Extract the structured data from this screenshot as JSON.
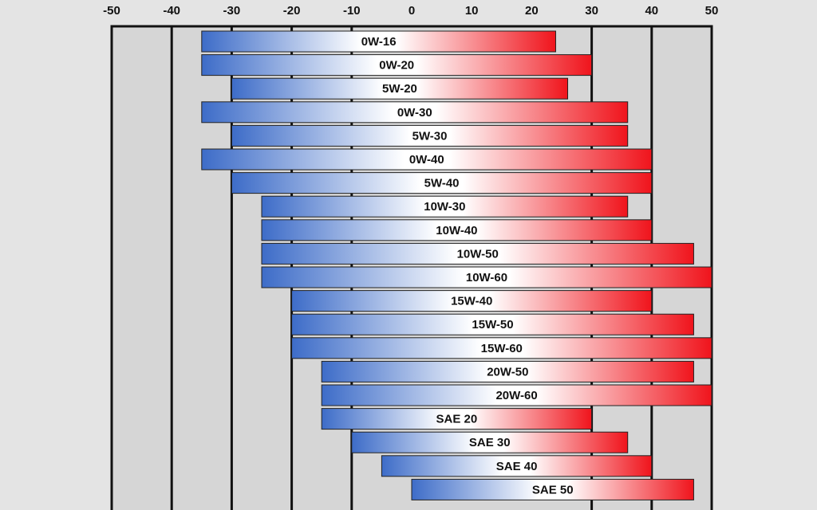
{
  "colors": {
    "background": "#e4e4e4",
    "plot_background": "#d6d6d6",
    "gridline": "#111111",
    "cold": "#3d6cc8",
    "hot": "#f0141c",
    "neutral": "#ffffff"
  },
  "chart_data": {
    "type": "bar",
    "orientation": "horizontal-range",
    "title": "",
    "xlabel": "",
    "ylabel": "",
    "xlim": [
      -50,
      50
    ],
    "x_ticks": [
      "-50",
      "-40",
      "-30",
      "-20",
      "-10",
      "0",
      "10",
      "20",
      "30",
      "40",
      "50"
    ],
    "x_axis_position": "top",
    "grid": "vertical lines at -40, -30, -20, -10, 30, 40",
    "categories": [
      "0W-16",
      "0W-20",
      "5W-20",
      "0W-30",
      "5W-30",
      "0W-40",
      "5W-40",
      "10W-30",
      "10W-40",
      "10W-50",
      "10W-60",
      "15W-40",
      "15W-50",
      "15W-60",
      "20W-50",
      "20W-60",
      "SAE 20",
      "SAE 30",
      "SAE 40",
      "SAE 50"
    ],
    "ranges": [
      [
        -35,
        24
      ],
      [
        -35,
        30
      ],
      [
        -30,
        26
      ],
      [
        -35,
        36
      ],
      [
        -30,
        36
      ],
      [
        -35,
        40
      ],
      [
        -30,
        40
      ],
      [
        -25,
        36
      ],
      [
        -25,
        40
      ],
      [
        -25,
        47
      ],
      [
        -25,
        50
      ],
      [
        -20,
        40
      ],
      [
        -20,
        47
      ],
      [
        -20,
        50
      ],
      [
        -15,
        47
      ],
      [
        -15,
        50
      ],
      [
        -15,
        30
      ],
      [
        -10,
        36
      ],
      [
        -5,
        40
      ],
      [
        0,
        47
      ]
    ],
    "color_scale": "blue (cold) to white to red (hot)"
  }
}
